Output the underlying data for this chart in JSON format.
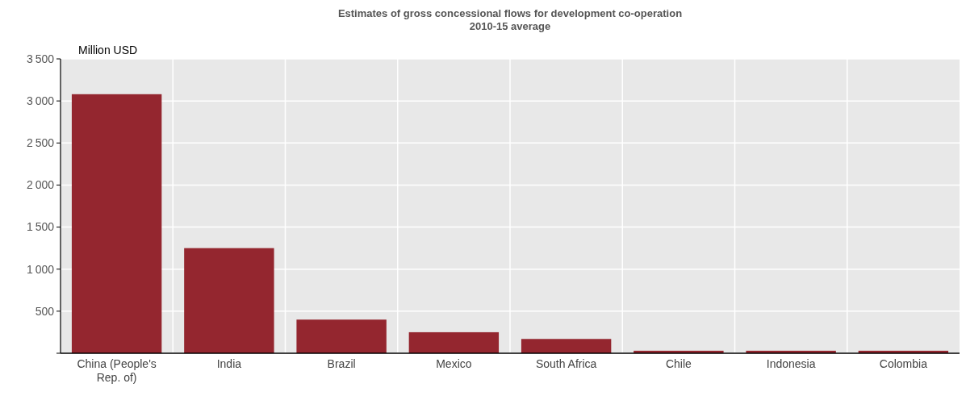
{
  "chart_data": {
    "type": "bar",
    "title": "Estimates of gross concessional flows for development co-operation",
    "subtitle": "2010-15 average",
    "ylabel": "Million USD",
    "categories": [
      "China (People's Rep. of)",
      "India",
      "Brazil",
      "Mexico",
      "South Africa",
      "Chile",
      "Indonesia",
      "Colombia"
    ],
    "values": [
      3080,
      1250,
      400,
      250,
      170,
      30,
      30,
      30
    ],
    "color": "#94262f",
    "ylim": [
      0,
      3500
    ],
    "yticks": [
      {
        "value": 0,
        "label": null
      },
      500,
      1000,
      1500,
      2000,
      2500,
      3000,
      3500
    ],
    "grid": true
  }
}
